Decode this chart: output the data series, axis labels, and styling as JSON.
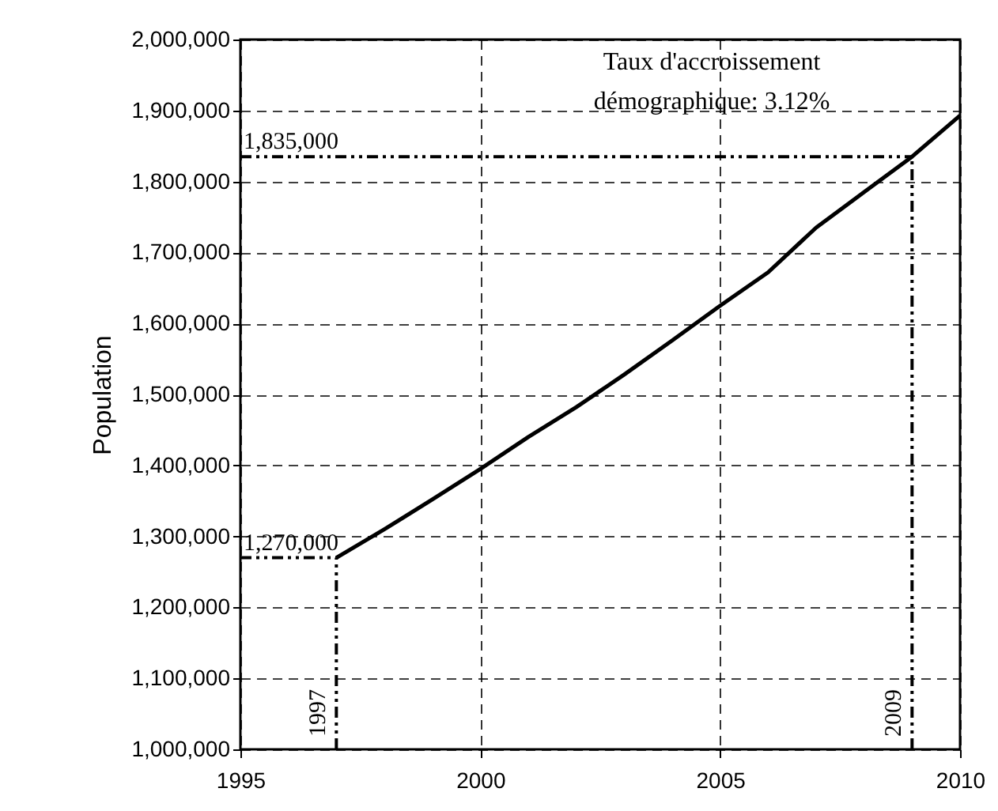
{
  "chart_data": {
    "type": "line",
    "ylabel": "Population",
    "x": [
      1997,
      1998,
      1999,
      2000,
      2001,
      2002,
      2003,
      2004,
      2005,
      2006,
      2007,
      2008,
      2009,
      2010
    ],
    "series": [
      {
        "color": "#000000",
        "values": [
          1270000,
          1310000,
          1352000,
          1395000,
          1440000,
          1482000,
          1528000,
          1576000,
          1625000,
          1672000,
          1735000,
          1785000,
          1835000,
          1893000
        ]
      }
    ],
    "xlim": [
      1995,
      2010
    ],
    "xticks": [
      1995,
      2000,
      2005,
      2010
    ],
    "ylim": [
      1000000,
      2000000
    ],
    "yticks": [
      {
        "value": 1000000,
        "label": "1,000,000"
      },
      {
        "value": 1100000,
        "label": "1,100,000"
      },
      {
        "value": 1200000,
        "label": "1,200,000"
      },
      {
        "value": 1300000,
        "label": "1,300,000"
      },
      {
        "value": 1400000,
        "label": "1,400,000"
      },
      {
        "value": 1500000,
        "label": "1,500,000"
      },
      {
        "value": 1600000,
        "label": "1,600,000"
      },
      {
        "value": 1700000,
        "label": "1,700,000"
      },
      {
        "value": 1800000,
        "label": "1,800,000"
      },
      {
        "value": 1900000,
        "label": "1,900,000"
      },
      {
        "value": 2000000,
        "label": "2,000,000"
      }
    ],
    "grid": true,
    "marker": "none",
    "line_style": "solid",
    "ref_lines": [
      {
        "axis": "y",
        "value": 1270000,
        "label": "1,270,000",
        "color": "#000000",
        "line_style": "dashed"
      },
      {
        "axis": "x",
        "value": 1997,
        "label": "1997",
        "color": "#000000",
        "line_style": "dashed"
      },
      {
        "axis": "y",
        "value": 1835000,
        "label": "1,835,000",
        "color": "#000000",
        "line_style": "dashed"
      },
      {
        "axis": "x",
        "value": 2009,
        "label": "2009",
        "color": "#000000",
        "line_style": "dashed"
      }
    ],
    "annotations": [
      "Taux d'accroissement\ndémographique: 3.12%"
    ]
  }
}
